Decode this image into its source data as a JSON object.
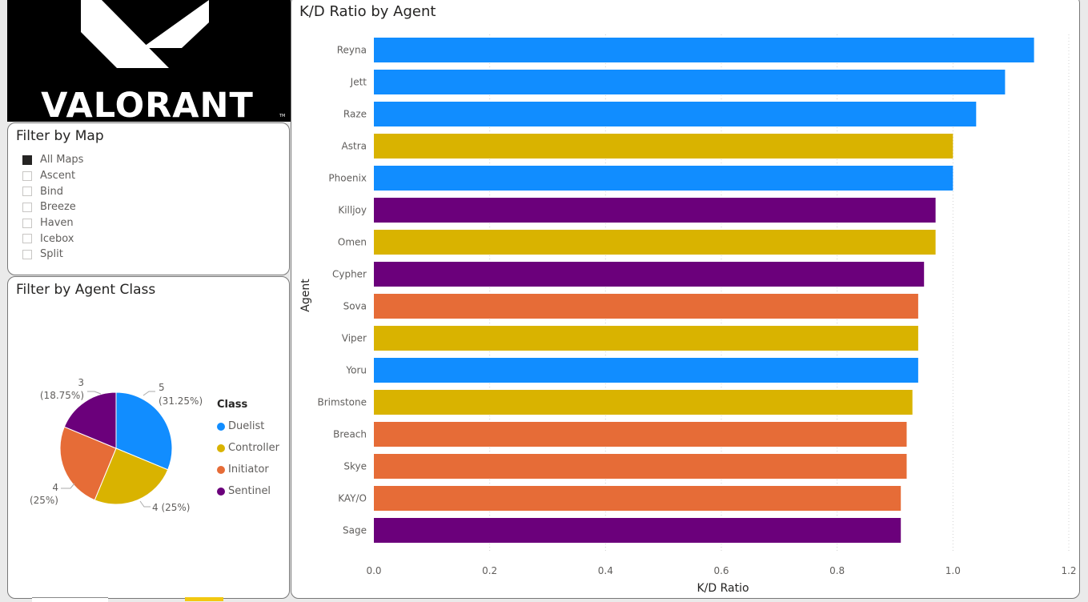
{
  "logo": {
    "text": "VALORANT",
    "tm": "TM"
  },
  "map_filter": {
    "title": "Filter by Map",
    "items": [
      {
        "label": "All Maps",
        "checked": true
      },
      {
        "label": "Ascent",
        "checked": false
      },
      {
        "label": "Bind",
        "checked": false
      },
      {
        "label": "Breeze",
        "checked": false
      },
      {
        "label": "Haven",
        "checked": false
      },
      {
        "label": "Icebox",
        "checked": false
      },
      {
        "label": "Split",
        "checked": false
      }
    ]
  },
  "class_filter": {
    "title": "Filter by Agent Class",
    "legend_title": "Class",
    "classes": [
      {
        "name": "Duelist",
        "color": "#118dff"
      },
      {
        "name": "Controller",
        "color": "#d9b300"
      },
      {
        "name": "Initiator",
        "color": "#e66c37"
      },
      {
        "name": "Sentinel",
        "color": "#6b007b"
      }
    ]
  },
  "chart_data": [
    {
      "type": "pie",
      "slices": [
        {
          "label": "Duelist",
          "value": 5,
          "percent": "31.25%",
          "color": "#118dff"
        },
        {
          "label": "Controller",
          "value": 4,
          "percent": "25%",
          "color": "#d9b300"
        },
        {
          "label": "Initiator",
          "value": 4,
          "percent": "25%",
          "color": "#e66c37"
        },
        {
          "label": "Sentinel",
          "value": 3,
          "percent": "18.75%",
          "color": "#6b007b"
        }
      ],
      "data_labels": [
        "5",
        "(31.25%)",
        "4 (25%)",
        "4",
        "(25%)",
        "3",
        "(18.75%)"
      ],
      "legend_title": "Class",
      "legend_position": "right"
    },
    {
      "type": "bar",
      "orientation": "horizontal",
      "title": "K/D Ratio by Agent",
      "xlabel": "K/D Ratio",
      "ylabel": "Agent",
      "xlim": [
        0,
        1.2
      ],
      "xticks": [
        "0.0",
        "0.2",
        "0.4",
        "0.6",
        "0.8",
        "1.0",
        "1.2"
      ],
      "grid": "vertical dotted",
      "categories": [
        "Reyna",
        "Jett",
        "Raze",
        "Astra",
        "Phoenix",
        "Killjoy",
        "Omen",
        "Cypher",
        "Sova",
        "Viper",
        "Yoru",
        "Brimstone",
        "Breach",
        "Skye",
        "KAY/O",
        "Sage"
      ],
      "values": [
        1.14,
        1.09,
        1.04,
        1.0,
        1.0,
        0.97,
        0.97,
        0.95,
        0.94,
        0.94,
        0.94,
        0.93,
        0.92,
        0.92,
        0.91,
        0.91
      ],
      "classes": [
        "Duelist",
        "Duelist",
        "Duelist",
        "Controller",
        "Duelist",
        "Sentinel",
        "Controller",
        "Sentinel",
        "Initiator",
        "Controller",
        "Duelist",
        "Controller",
        "Initiator",
        "Initiator",
        "Initiator",
        "Sentinel"
      ],
      "class_colors": {
        "Duelist": "#118dff",
        "Controller": "#d9b300",
        "Initiator": "#e66c37",
        "Sentinel": "#6b007b"
      }
    }
  ]
}
